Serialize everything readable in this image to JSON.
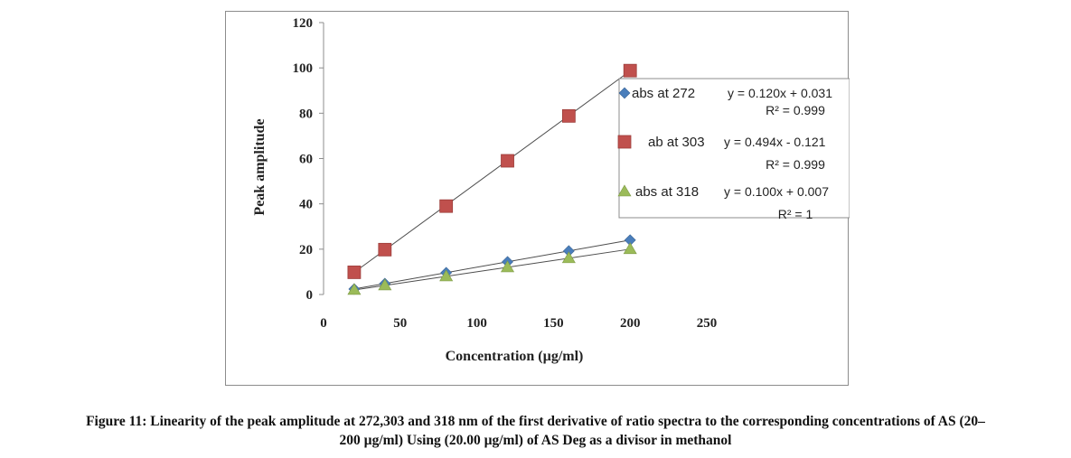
{
  "chart_data": {
    "type": "scatter",
    "xlabel": "Concentration (µg/ml)",
    "ylabel": "Peak amplitude",
    "xlim": [
      0,
      250
    ],
    "ylim": [
      0,
      120
    ],
    "xticks": [
      "0",
      "50",
      "100",
      "150",
      "200",
      "250"
    ],
    "yticks": [
      "0",
      "20",
      "40",
      "60",
      "80",
      "100",
      "120"
    ],
    "grid": false,
    "legend_position": "right",
    "series": [
      {
        "name": "abs  at 272",
        "marker": "diamond",
        "color": "#4a7ebb",
        "x": [
          20,
          40,
          80,
          120,
          160,
          200
        ],
        "y": [
          2.4,
          4.8,
          9.6,
          14.4,
          19.2,
          24.0
        ],
        "trendline": {
          "slope": 0.12,
          "intercept": 0.031
        },
        "equation": "y = 0.120x + 0.031",
        "r2": "R² = 0.999"
      },
      {
        "name": "ab at 303",
        "marker": "square",
        "color": "#c0504d",
        "x": [
          20,
          40,
          80,
          120,
          160,
          200
        ],
        "y": [
          9.8,
          19.8,
          39.0,
          59.0,
          78.8,
          98.8
        ],
        "trendline": {
          "slope": 0.494,
          "intercept": -0.121
        },
        "equation": "y = 0.494x - 0.121",
        "r2": "R² = 0.999"
      },
      {
        "name": "abs at 318",
        "marker": "triangle",
        "color": "#9bbb59",
        "x": [
          20,
          40,
          80,
          120,
          160,
          200
        ],
        "y": [
          2.0,
          4.0,
          8.0,
          12.0,
          16.0,
          20.0
        ],
        "trendline": {
          "slope": 0.1,
          "intercept": 0.007
        },
        "equation": "y = 0.100x + 0.007",
        "r2": "R² = 1"
      }
    ]
  },
  "caption": {
    "line1": "Figure 11: Linearity of the peak amplitude at 272,303 and 318 nm of the first derivative of ratio spectra to the corresponding concentrations of AS (20–",
    "line2": "200 µg/ml) Using (20.00 µg/ml) of AS Deg as a divisor in methanol"
  }
}
